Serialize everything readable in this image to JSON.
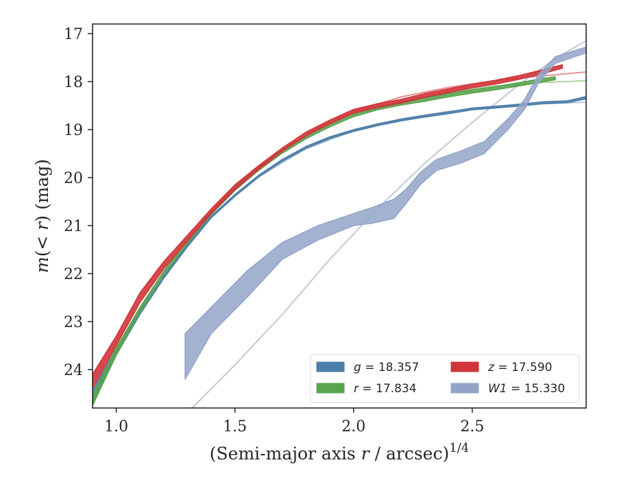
{
  "chart_data": {
    "type": "line",
    "xlabel": {
      "pre": "(Semi-major axis ",
      "var": "r",
      "post": " / arcsec)",
      "sup": "1/4"
    },
    "ylabel": {
      "pre": "m",
      "mid": "(< ",
      "var": "r",
      "post": ") (mag)"
    },
    "xlim": [
      0.9,
      2.98
    ],
    "ylim": [
      24.8,
      16.8
    ],
    "y_inverted": true,
    "xticks": [
      1.0,
      1.5,
      2.0,
      2.5
    ],
    "xtick_labels": [
      "1.0",
      "1.5",
      "2.0",
      "2.5"
    ],
    "yticks": [
      17,
      18,
      19,
      20,
      21,
      22,
      23,
      24
    ],
    "ytick_labels": [
      "17",
      "18",
      "19",
      "20",
      "21",
      "22",
      "23",
      "24"
    ],
    "legend_position": "lower-right",
    "legend": [
      {
        "var": "g",
        "text": " = 18.357",
        "color": "#4c7ea9"
      },
      {
        "var": "z",
        "text": " = 17.590",
        "color": "#d0353a"
      },
      {
        "var": "r",
        "text": " = 17.834",
        "color": "#5aa44f"
      },
      {
        "var": "W1",
        "text": " = 15.330",
        "color": "#93a4c8"
      }
    ],
    "series": [
      {
        "name": "g",
        "color": "#4c7ea9",
        "x": [
          0.9,
          1.0,
          1.1,
          1.2,
          1.3,
          1.4,
          1.5,
          1.6,
          1.7,
          1.8,
          1.9,
          2.0,
          2.1,
          2.2,
          2.3,
          2.4,
          2.5,
          2.6,
          2.7,
          2.8,
          2.9,
          2.98
        ],
        "y_upper": [
          24.45,
          23.55,
          22.75,
          22.05,
          21.4,
          20.8,
          20.35,
          19.95,
          19.62,
          19.35,
          19.15,
          19.0,
          18.88,
          18.78,
          18.7,
          18.63,
          18.55,
          18.51,
          18.47,
          18.42,
          18.4,
          18.31
        ],
        "y_lower": [
          24.7,
          23.7,
          22.85,
          22.1,
          21.44,
          20.84,
          20.39,
          19.99,
          19.66,
          19.39,
          19.19,
          19.04,
          18.92,
          18.82,
          18.74,
          18.67,
          18.59,
          18.55,
          18.51,
          18.46,
          18.44,
          18.36
        ]
      },
      {
        "name": "r",
        "color": "#5aa44f",
        "x": [
          0.9,
          1.0,
          1.1,
          1.2,
          1.3,
          1.4,
          1.5,
          1.6,
          1.7,
          1.8,
          1.9,
          2.0,
          2.1,
          2.2,
          2.3,
          2.4,
          2.5,
          2.6,
          2.7,
          2.8,
          2.85
        ],
        "y_upper": [
          24.55,
          23.55,
          22.7,
          21.95,
          21.3,
          20.7,
          20.2,
          19.78,
          19.42,
          19.12,
          18.87,
          18.66,
          18.52,
          18.42,
          18.34,
          18.25,
          18.17,
          18.1,
          18.02,
          17.93,
          17.9
        ],
        "y_lower": [
          24.75,
          23.7,
          22.8,
          22.03,
          21.37,
          20.77,
          20.27,
          19.85,
          19.49,
          19.19,
          18.94,
          18.73,
          18.59,
          18.49,
          18.41,
          18.32,
          18.24,
          18.17,
          18.09,
          18.0,
          17.96
        ]
      },
      {
        "name": "z",
        "color": "#d0353a",
        "x": [
          0.9,
          1.0,
          1.1,
          1.2,
          1.3,
          1.4,
          1.5,
          1.6,
          1.7,
          1.8,
          1.9,
          2.0,
          2.1,
          2.2,
          2.3,
          2.4,
          2.5,
          2.6,
          2.7,
          2.8,
          2.88
        ],
        "y_upper": [
          24.1,
          23.3,
          22.4,
          21.75,
          21.2,
          20.65,
          20.15,
          19.75,
          19.38,
          19.05,
          18.8,
          18.58,
          18.46,
          18.37,
          18.25,
          18.15,
          18.05,
          17.97,
          17.87,
          17.75,
          17.65
        ],
        "y_lower": [
          24.4,
          23.5,
          22.6,
          21.9,
          21.32,
          20.75,
          20.25,
          19.83,
          19.45,
          19.13,
          18.88,
          18.66,
          18.54,
          18.45,
          18.33,
          18.23,
          18.13,
          18.05,
          17.95,
          17.83,
          17.72
        ]
      },
      {
        "name": "W1",
        "color": "#93a4c8",
        "x": [
          1.29,
          1.4,
          1.55,
          1.7,
          1.85,
          2.0,
          2.08,
          2.17,
          2.22,
          2.28,
          2.35,
          2.45,
          2.55,
          2.65,
          2.72,
          2.78,
          2.85,
          2.98
        ],
        "y_upper": [
          23.25,
          22.7,
          21.95,
          21.35,
          21.0,
          20.75,
          20.62,
          20.45,
          20.25,
          19.9,
          19.62,
          19.45,
          19.25,
          18.78,
          18.38,
          17.85,
          17.48,
          17.28
        ],
        "y_lower": [
          24.2,
          23.25,
          22.5,
          21.7,
          21.3,
          21.0,
          20.95,
          20.85,
          20.55,
          20.15,
          19.85,
          19.7,
          19.5,
          19.0,
          18.58,
          18.02,
          17.62,
          17.4
        ]
      }
    ],
    "models": [
      {
        "name": "g",
        "color": "#b7c9de",
        "x": [
          1.6,
          1.8,
          2.0,
          2.2,
          2.4,
          2.6,
          2.8,
          2.98
        ],
        "y": [
          19.98,
          19.4,
          19.02,
          18.78,
          18.62,
          18.52,
          18.46,
          18.43
        ]
      },
      {
        "name": "r",
        "color": "#a9d4a1",
        "x": [
          1.8,
          2.0,
          2.2,
          2.4,
          2.6,
          2.8,
          2.98
        ],
        "y": [
          19.17,
          18.72,
          18.42,
          18.22,
          18.09,
          18.02,
          17.98
        ]
      },
      {
        "name": "z",
        "color": "#e58f91",
        "x": [
          1.8,
          2.0,
          2.2,
          2.4,
          2.6,
          2.8,
          2.98
        ],
        "y": [
          19.1,
          18.62,
          18.32,
          18.12,
          17.98,
          17.88,
          17.8
        ]
      },
      {
        "name": "W1",
        "color": "#bfc8dc",
        "x": [
          1.32,
          1.5,
          1.7,
          1.9,
          2.1,
          2.3,
          2.5,
          2.7,
          2.85,
          2.98
        ],
        "y": [
          24.8,
          23.9,
          22.85,
          21.7,
          20.65,
          19.7,
          18.85,
          18.05,
          17.52,
          17.15
        ]
      }
    ]
  }
}
